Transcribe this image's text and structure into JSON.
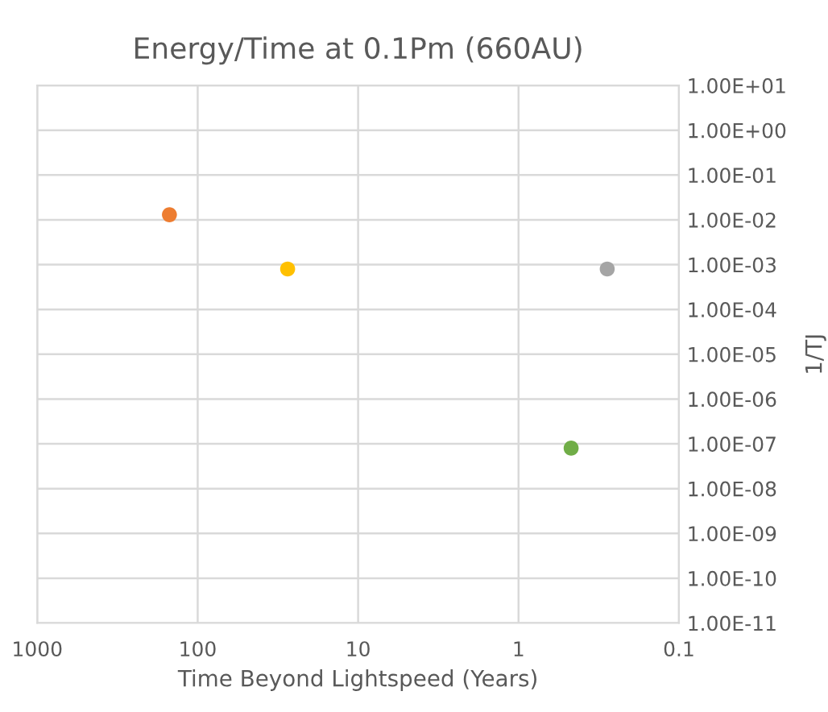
{
  "chart_data": {
    "type": "scatter",
    "title": "Energy/Time at 0.1Pm (660AU)",
    "xlabel": "Time Beyond Lightspeed (Years)",
    "ylabel": "1/TJ",
    "x": [
      150,
      27.5,
      0.28,
      0.47
    ],
    "values": [
      0.013,
      0.0008,
      0.0008,
      8e-08
    ],
    "colors": [
      "#ed7d31",
      "#ffc000",
      "#a5a5a5",
      "#70ad47"
    ],
    "log": "xy",
    "marker": "circle",
    "grid": true,
    "xlim": [
      1000,
      0.1
    ],
    "xticks": [
      1000,
      100,
      10,
      1,
      0.1
    ],
    "ylim": [
      1e-11,
      10
    ],
    "yticks": [
      {
        "value": 1e-11,
        "label": "1.00E-11"
      },
      {
        "value": 1e-10,
        "label": "1.00E-10"
      },
      {
        "value": 1e-09,
        "label": "1.00E-09"
      },
      {
        "value": 1e-08,
        "label": "1.00E-08"
      },
      {
        "value": 1e-07,
        "label": "1.00E-07"
      },
      {
        "value": 1e-06,
        "label": "1.00E-06"
      },
      {
        "value": 1e-05,
        "label": "1.00E-05"
      },
      {
        "value": 0.0001,
        "label": "1.00E-04"
      },
      {
        "value": 0.001,
        "label": "1.00E-03"
      },
      {
        "value": 0.01,
        "label": "1.00E-02"
      },
      {
        "value": 0.1,
        "label": "1.00E-01"
      },
      {
        "value": 1,
        "label": "1.00E+00"
      },
      {
        "value": 10,
        "label": "1.00E+01"
      }
    ]
  }
}
